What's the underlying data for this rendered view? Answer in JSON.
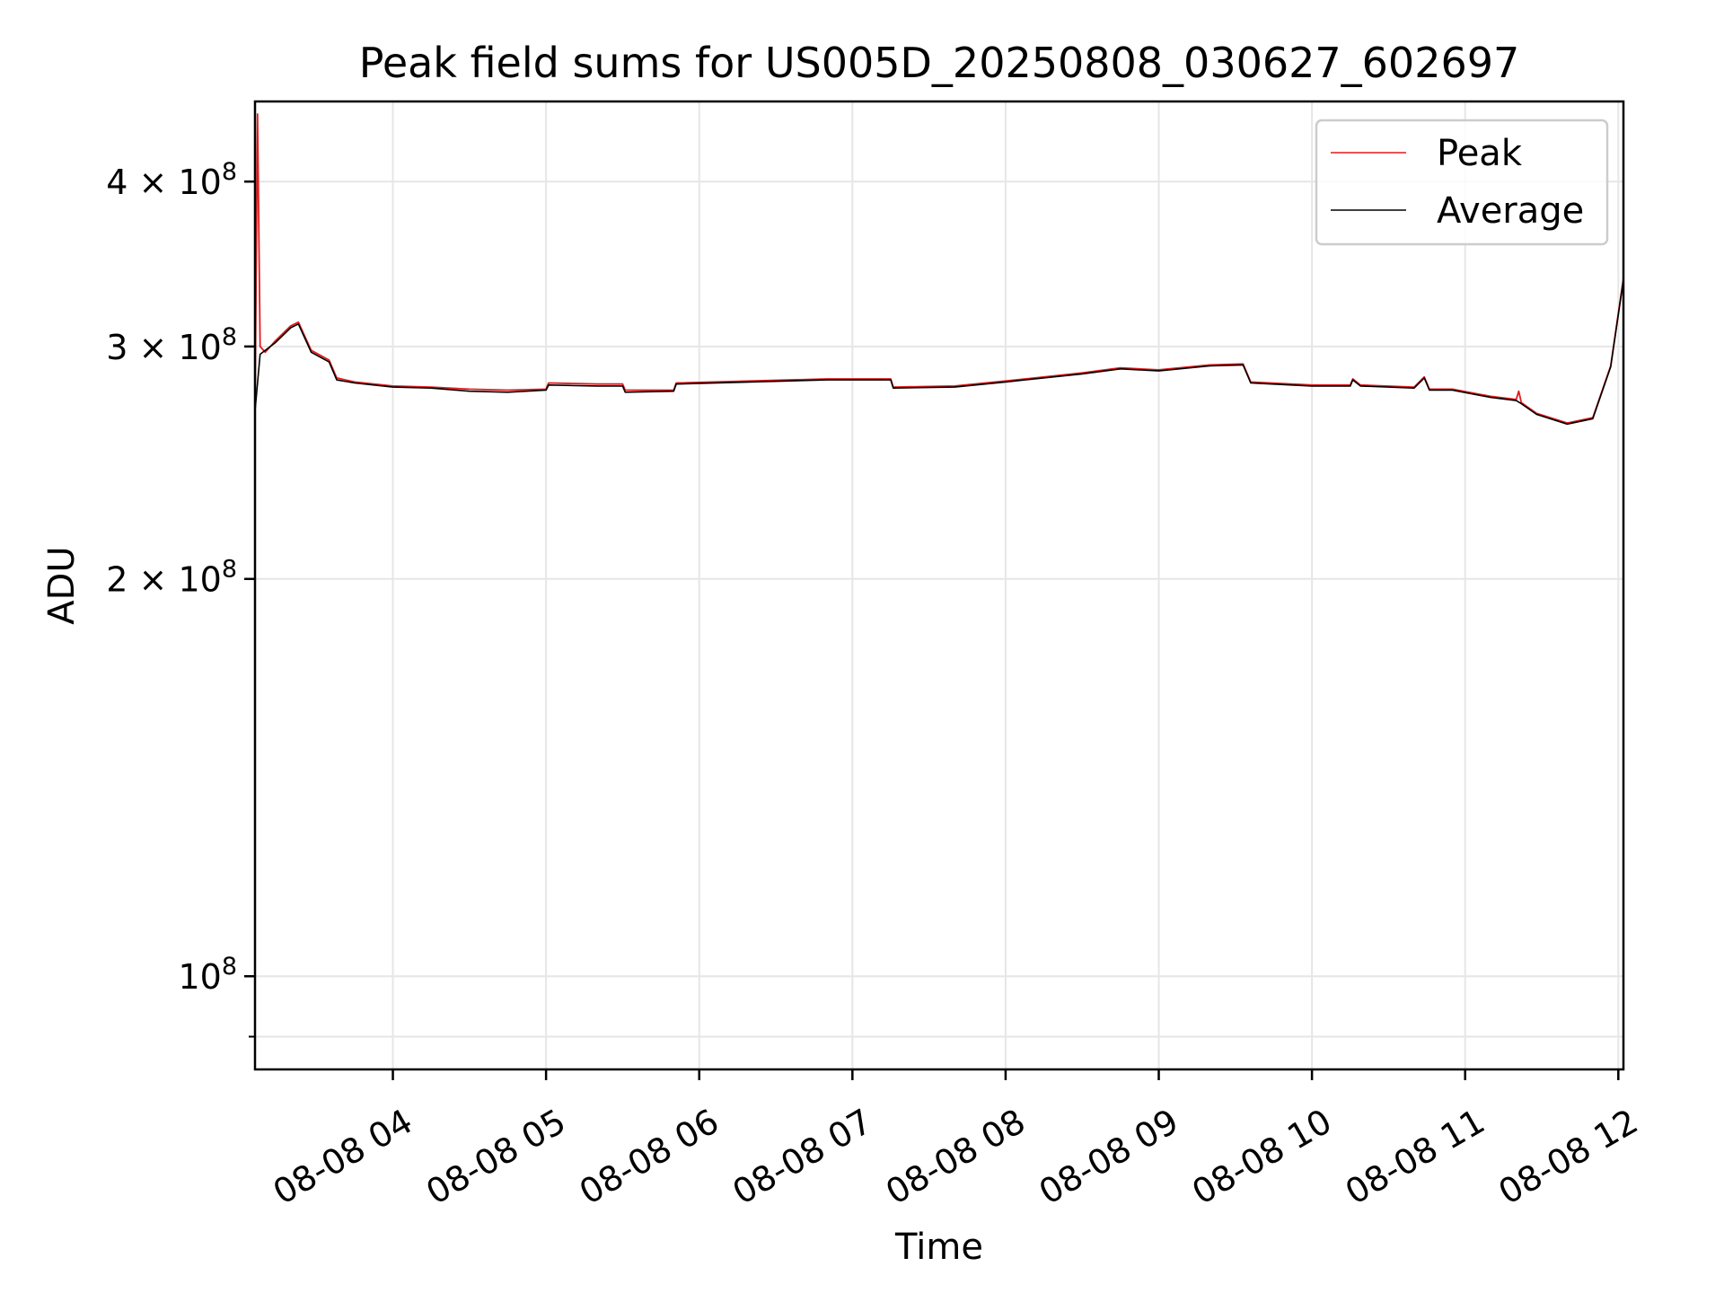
{
  "chart_data": {
    "type": "line",
    "title": "Peak field sums for US005D_20250808_030627_602697",
    "xlabel": "Time",
    "ylabel": "ADU",
    "yscale": "log",
    "grid": true,
    "legend_position": "top-right",
    "xlim": [
      "2025-08-08 03:06",
      "2025-08-08 12:02"
    ],
    "ylim": [
      85000000,
      460000000
    ],
    "x_ticks": [
      {
        "x": "2025-08-08 04:00",
        "label": "08-08 04"
      },
      {
        "x": "2025-08-08 05:00",
        "label": "08-08 05"
      },
      {
        "x": "2025-08-08 06:00",
        "label": "08-08 06"
      },
      {
        "x": "2025-08-08 07:00",
        "label": "08-08 07"
      },
      {
        "x": "2025-08-08 08:00",
        "label": "08-08 08"
      },
      {
        "x": "2025-08-08 09:00",
        "label": "08-08 09"
      },
      {
        "x": "2025-08-08 10:00",
        "label": "08-08 10"
      },
      {
        "x": "2025-08-08 11:00",
        "label": "08-08 11"
      },
      {
        "x": "2025-08-08 12:00",
        "label": "08-08 12"
      }
    ],
    "y_ticks": [
      {
        "y": 100000000,
        "base": "10",
        "exp": "8",
        "mantissa": ""
      },
      {
        "y": 200000000,
        "base": "10",
        "exp": "8",
        "mantissa": "2 × "
      },
      {
        "y": 300000000,
        "base": "10",
        "exp": "8",
        "mantissa": "3 × "
      },
      {
        "y": 400000000,
        "base": "10",
        "exp": "8",
        "mantissa": "4 × "
      }
    ],
    "y_minor_ticks": [
      90000000
    ],
    "series": [
      {
        "name": "Peak",
        "color": "#e41a1c",
        "points": [
          [
            "2025-08-08 03:06",
            270000000
          ],
          [
            "2025-08-08 03:07",
            450000000
          ],
          [
            "2025-08-08 03:08",
            300000000
          ],
          [
            "2025-08-08 03:10",
            297000000
          ],
          [
            "2025-08-08 03:14",
            303000000
          ],
          [
            "2025-08-08 03:20",
            311000000
          ],
          [
            "2025-08-08 03:23",
            313000000
          ],
          [
            "2025-08-08 03:28",
            298000000
          ],
          [
            "2025-08-08 03:35",
            293000000
          ],
          [
            "2025-08-08 03:38",
            284000000
          ],
          [
            "2025-08-08 03:45",
            282000000
          ],
          [
            "2025-08-08 04:00",
            280000000
          ],
          [
            "2025-08-08 04:15",
            279500000
          ],
          [
            "2025-08-08 04:30",
            278500000
          ],
          [
            "2025-08-08 04:45",
            278000000
          ],
          [
            "2025-08-08 05:00",
            278500000
          ],
          [
            "2025-08-08 05:01",
            281500000
          ],
          [
            "2025-08-08 05:20",
            281000000
          ],
          [
            "2025-08-08 05:30",
            281000000
          ],
          [
            "2025-08-08 05:31",
            278000000
          ],
          [
            "2025-08-08 05:50",
            278000000
          ],
          [
            "2025-08-08 05:51",
            281500000
          ],
          [
            "2025-08-08 06:20",
            282500000
          ],
          [
            "2025-08-08 06:50",
            283500000
          ],
          [
            "2025-08-08 07:15",
            283500000
          ],
          [
            "2025-08-08 07:16",
            279500000
          ],
          [
            "2025-08-08 07:40",
            280000000
          ],
          [
            "2025-08-08 08:00",
            282500000
          ],
          [
            "2025-08-08 08:30",
            286500000
          ],
          [
            "2025-08-08 08:45",
            289000000
          ],
          [
            "2025-08-08 09:00",
            288000000
          ],
          [
            "2025-08-08 09:20",
            290500000
          ],
          [
            "2025-08-08 09:33",
            291000000
          ],
          [
            "2025-08-08 09:36",
            282000000
          ],
          [
            "2025-08-08 10:00",
            280500000
          ],
          [
            "2025-08-08 10:15",
            280500000
          ],
          [
            "2025-08-08 10:16",
            283500000
          ],
          [
            "2025-08-08 10:19",
            280500000
          ],
          [
            "2025-08-08 10:40",
            279500000
          ],
          [
            "2025-08-08 10:44",
            284500000
          ],
          [
            "2025-08-08 10:46",
            278500000
          ],
          [
            "2025-08-08 10:55",
            278500000
          ],
          [
            "2025-08-08 11:10",
            275000000
          ],
          [
            "2025-08-08 11:20",
            273500000
          ],
          [
            "2025-08-08 11:21",
            277500000
          ],
          [
            "2025-08-08 11:22",
            272000000
          ],
          [
            "2025-08-08 11:28",
            267000000
          ],
          [
            "2025-08-08 11:40",
            262500000
          ],
          [
            "2025-08-08 11:50",
            265000000
          ],
          [
            "2025-08-08 11:57",
            290000000
          ],
          [
            "2025-08-08 12:02",
            338000000
          ]
        ]
      },
      {
        "name": "Average",
        "color": "#000000",
        "points": [
          [
            "2025-08-08 03:06",
            268000000
          ],
          [
            "2025-08-08 03:08",
            296000000
          ],
          [
            "2025-08-08 03:14",
            302000000
          ],
          [
            "2025-08-08 03:20",
            310000000
          ],
          [
            "2025-08-08 03:23",
            312000000
          ],
          [
            "2025-08-08 03:28",
            297000000
          ],
          [
            "2025-08-08 03:35",
            292000000
          ],
          [
            "2025-08-08 03:38",
            283000000
          ],
          [
            "2025-08-08 03:45",
            281500000
          ],
          [
            "2025-08-08 04:00",
            279500000
          ],
          [
            "2025-08-08 04:15",
            279000000
          ],
          [
            "2025-08-08 04:30",
            277500000
          ],
          [
            "2025-08-08 04:45",
            277000000
          ],
          [
            "2025-08-08 05:00",
            278000000
          ],
          [
            "2025-08-08 05:01",
            280500000
          ],
          [
            "2025-08-08 05:20",
            280000000
          ],
          [
            "2025-08-08 05:30",
            280000000
          ],
          [
            "2025-08-08 05:31",
            277000000
          ],
          [
            "2025-08-08 05:50",
            277500000
          ],
          [
            "2025-08-08 05:51",
            281000000
          ],
          [
            "2025-08-08 06:20",
            282000000
          ],
          [
            "2025-08-08 06:50",
            283000000
          ],
          [
            "2025-08-08 07:15",
            283000000
          ],
          [
            "2025-08-08 07:16",
            279000000
          ],
          [
            "2025-08-08 07:40",
            279500000
          ],
          [
            "2025-08-08 08:00",
            282000000
          ],
          [
            "2025-08-08 08:30",
            286000000
          ],
          [
            "2025-08-08 08:45",
            288500000
          ],
          [
            "2025-08-08 09:00",
            287500000
          ],
          [
            "2025-08-08 09:20",
            290000000
          ],
          [
            "2025-08-08 09:33",
            290500000
          ],
          [
            "2025-08-08 09:36",
            281500000
          ],
          [
            "2025-08-08 10:00",
            280000000
          ],
          [
            "2025-08-08 10:15",
            280000000
          ],
          [
            "2025-08-08 10:16",
            283000000
          ],
          [
            "2025-08-08 10:19",
            280000000
          ],
          [
            "2025-08-08 10:40",
            279000000
          ],
          [
            "2025-08-08 10:44",
            284000000
          ],
          [
            "2025-08-08 10:46",
            278000000
          ],
          [
            "2025-08-08 10:55",
            278000000
          ],
          [
            "2025-08-08 11:10",
            274500000
          ],
          [
            "2025-08-08 11:20",
            273000000
          ],
          [
            "2025-08-08 11:22",
            271500000
          ],
          [
            "2025-08-08 11:28",
            266500000
          ],
          [
            "2025-08-08 11:40",
            262000000
          ],
          [
            "2025-08-08 11:50",
            264500000
          ],
          [
            "2025-08-08 11:57",
            289500000
          ],
          [
            "2025-08-08 12:02",
            337000000
          ]
        ]
      }
    ]
  }
}
